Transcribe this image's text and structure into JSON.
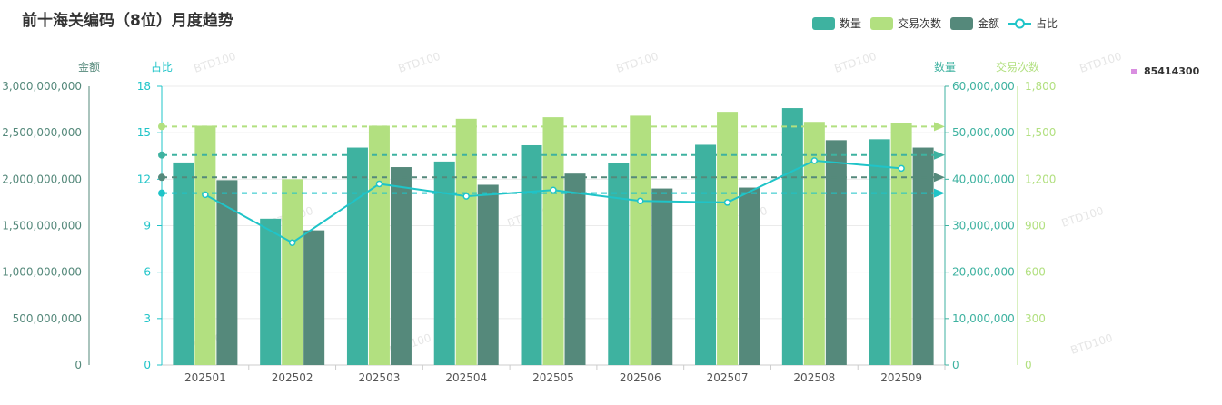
{
  "title": "前十海关编码（8位）月度趋势",
  "legend": {
    "items": [
      {
        "label": "数量",
        "color": "#3eb2a0",
        "kind": "bar"
      },
      {
        "label": "交易次数",
        "color": "#b2e080",
        "kind": "bar"
      },
      {
        "label": "金额",
        "color": "#55897b",
        "kind": "bar"
      },
      {
        "label": "占比",
        "color": "#1fc4c8",
        "kind": "line"
      }
    ]
  },
  "side_label": {
    "value": "85414300",
    "color": "#d98ee0"
  },
  "chart_data": {
    "type": "bar",
    "categories": [
      "202501",
      "202502",
      "202503",
      "202504",
      "202505",
      "202506",
      "202507",
      "202508",
      "202509"
    ],
    "series": [
      {
        "name": "数量",
        "type": "bar",
        "axis": "数量",
        "color": "#3eb2a0",
        "values": [
          43600000,
          31500000,
          46800000,
          43800000,
          47300000,
          43400000,
          47400000,
          55300000,
          48600000
        ]
      },
      {
        "name": "交易次数",
        "type": "bar",
        "axis": "交易次数",
        "color": "#b2e080",
        "values": [
          1545,
          1200,
          1545,
          1590,
          1600,
          1610,
          1635,
          1570,
          1565
        ]
      },
      {
        "name": "金额",
        "type": "bar",
        "axis": "金额",
        "color": "#55897b",
        "values": [
          1990000000,
          1450000000,
          2130000000,
          1940000000,
          2060000000,
          1900000000,
          1910000000,
          2420000000,
          2340000000
        ]
      },
      {
        "name": "占比",
        "type": "line",
        "axis": "占比",
        "color": "#1fc4c8",
        "values": [
          11.0,
          7.9,
          11.7,
          10.9,
          11.3,
          10.6,
          10.5,
          13.2,
          12.7
        ]
      }
    ],
    "axes": {
      "金额": {
        "label": "金额",
        "ticks": [
          "0",
          "500,000,000",
          "1,000,000,000",
          "1,500,000,000",
          "2,000,000,000",
          "2,500,000,000",
          "3,000,000,000"
        ],
        "min": 0,
        "max": 3000000000,
        "color": "#55897b"
      },
      "占比": {
        "label": "占比",
        "ticks": [
          "0",
          "3",
          "6",
          "9",
          "12",
          "15",
          "18"
        ],
        "min": 0,
        "max": 18,
        "color": "#1fc4c8"
      },
      "数量": {
        "label": "数量",
        "ticks": [
          "0",
          "10,000,000",
          "20,000,000",
          "30,000,000",
          "40,000,000",
          "50,000,000",
          "60,000,000"
        ],
        "min": 0,
        "max": 60000000,
        "color": "#3eb2a0"
      },
      "交易次数": {
        "label": "交易次数",
        "ticks": [
          "0",
          "300",
          "600",
          "900",
          "1,200",
          "1,500",
          "1,800"
        ],
        "min": 0,
        "max": 1800,
        "color": "#b2e080"
      }
    },
    "average_lines": [
      {
        "series": "交易次数",
        "value": 1540,
        "color": "#b2e080"
      },
      {
        "series": "数量",
        "value": 45200000,
        "color": "#3eb2a0"
      },
      {
        "series": "金额",
        "value": 2020000000,
        "color": "#55897b"
      },
      {
        "series": "占比",
        "value": 11.1,
        "color": "#1fc4c8"
      }
    ],
    "watermark": "BTD100",
    "grid": true
  }
}
